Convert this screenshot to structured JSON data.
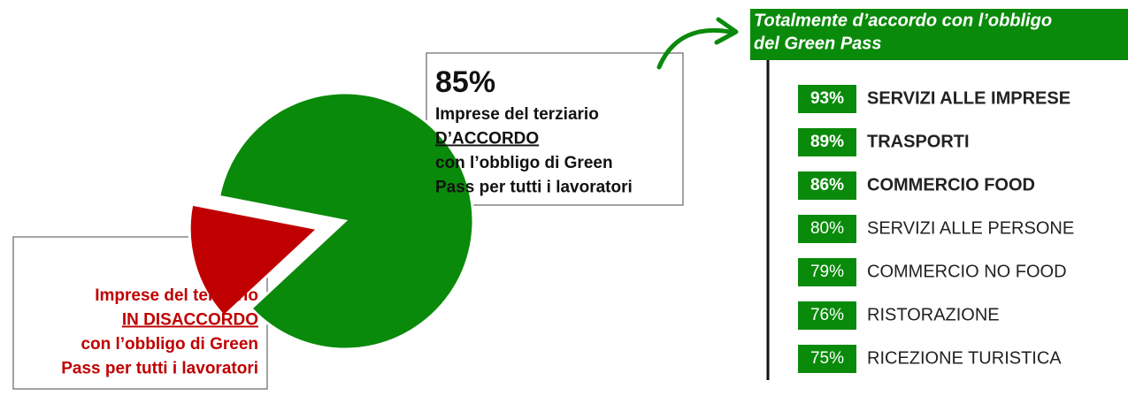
{
  "chart_data": [
    {
      "type": "pie",
      "values": [
        85,
        15
      ],
      "value_labels": [
        "85%",
        "15%"
      ],
      "colors": [
        "#0a8a0a",
        "#c00000"
      ],
      "descriptions": [
        [
          "Imprese del terziario",
          "D’ACCORDO",
          "con l’obbligo di Green",
          "Pass per tutti i lavoratori"
        ],
        [
          "Imprese del terziario",
          "IN DISACCORDO",
          "con l’obbligo di Green",
          "Pass per tutti i lavoratori"
        ]
      ],
      "exploded": [
        false,
        true
      ]
    },
    {
      "type": "list",
      "title": [
        "Totalmente d’accordo con l’obbligo",
        "del Green Pass"
      ],
      "color": "#0a8a0a",
      "categories": [
        "SERVIZI ALLE IMPRESE",
        "TRASPORTI",
        "COMMERCIO FOOD",
        "SERVIZI ALLE PERSONE",
        "COMMERCIO NO FOOD",
        "RISTORAZIONE",
        "RICEZIONE TURISTICA"
      ],
      "values": [
        93,
        89,
        86,
        80,
        79,
        76,
        75
      ],
      "value_labels": [
        "93%",
        "89%",
        "86%",
        "80%",
        "79%",
        "76%",
        "75%"
      ],
      "bold": [
        true,
        true,
        true,
        false,
        false,
        false,
        false
      ]
    }
  ]
}
